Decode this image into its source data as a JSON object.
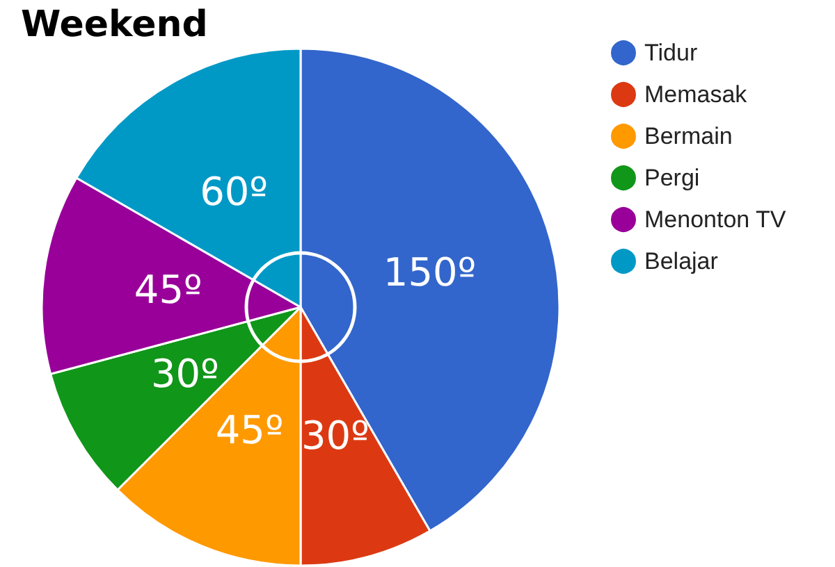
{
  "chart_data": {
    "type": "pie",
    "title": "Weekend",
    "categories": [
      "Tidur",
      "Memasak",
      "Bermain",
      "Pergi",
      "Menonton TV",
      "Belajar"
    ],
    "values": [
      150,
      30,
      45,
      30,
      45,
      60
    ],
    "value_labels": [
      "150º",
      "30º",
      "45º",
      "30º",
      "45º",
      "60º"
    ],
    "colors": [
      "#3366cc",
      "#dc3912",
      "#ff9900",
      "#109618",
      "#990099",
      "#0099c6"
    ],
    "legend": "right"
  }
}
